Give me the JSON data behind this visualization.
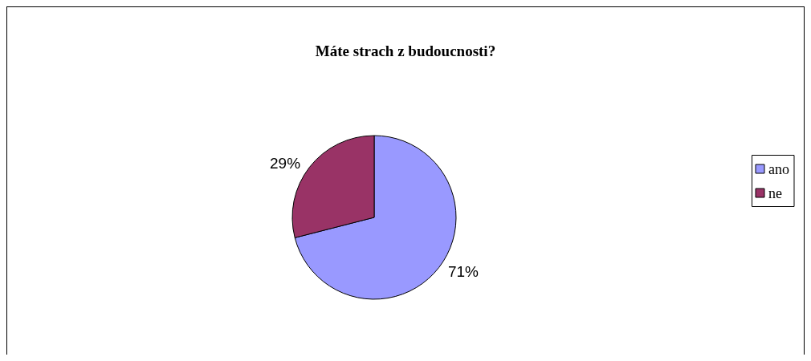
{
  "chart_data": {
    "type": "pie",
    "title": "Máte strach z budoucnosti?",
    "categories": [
      "ano",
      "ne"
    ],
    "values": [
      71,
      29
    ],
    "colors": [
      "#9999ff",
      "#993366"
    ],
    "value_labels": [
      "71%",
      "29%"
    ],
    "legend": "right"
  }
}
